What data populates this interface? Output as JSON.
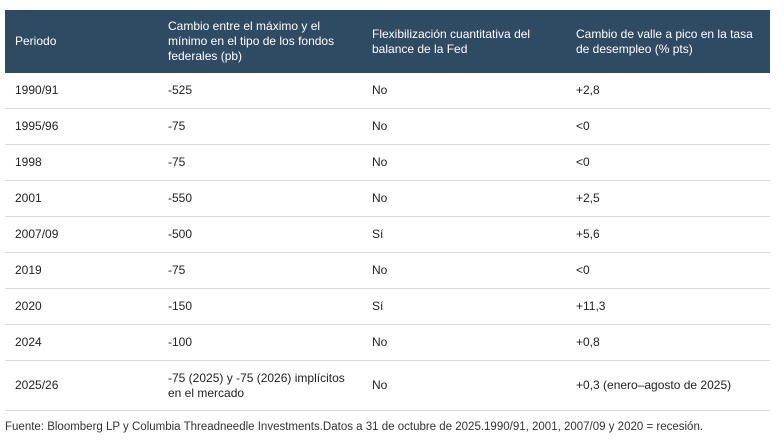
{
  "table": {
    "header": [
      "Periodo",
      "Cambio entre el máximo y el mínimo en el tipo de los fondos federales (pb)",
      "Flexibilización cuantitativa del balance de la Fed",
      "Cambio de valle a pico en la tasa de desempleo (% pts)"
    ],
    "rows": [
      [
        "1990/91",
        "-525",
        "No",
        "+2,8"
      ],
      [
        "1995/96",
        "-75",
        "No",
        "<0"
      ],
      [
        "1998",
        "-75",
        "No",
        "<0"
      ],
      [
        "2001",
        "-550",
        "No",
        "+2,5"
      ],
      [
        "2007/09",
        "-500",
        "Sí",
        "+5,6"
      ],
      [
        "2019",
        "-75",
        "No",
        "<0"
      ],
      [
        "2020",
        "-150",
        "Sí",
        "+11,3"
      ],
      [
        "2024",
        "-100",
        "No",
        "+0,8"
      ],
      [
        "2025/26",
        "-75 (2025) y -75 (2026) implícitos en el mercado",
        "No",
        "+0,3 (enero–agosto de 2025)"
      ]
    ]
  },
  "footnote": "Fuente: Bloomberg LP y Columbia Threadneedle Investments.Datos a 31 de octubre de 2025.1990/91, 2001, 2007/09 y 2020 = recesión."
}
